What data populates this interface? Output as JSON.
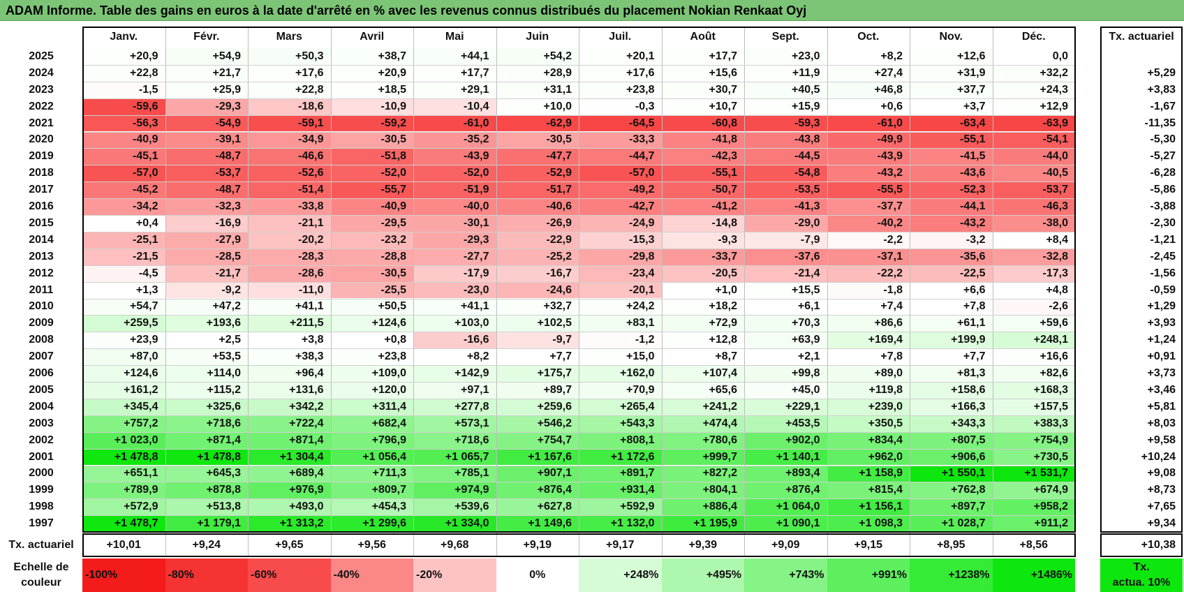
{
  "title": "ADAM Informe. Table des gains en euros à la date d'arrêté en % avec les revenus connus distribués du placement Nokian Renkaat Oyj",
  "chart_data": {
    "type": "table",
    "months": [
      "Janv.",
      "Févr.",
      "Mars",
      "Avril",
      "Mai",
      "Juin",
      "Juil.",
      "Août",
      "Sept.",
      "Oct.",
      "Nov.",
      "Déc."
    ],
    "rate_column_header": "Tx. actuariel",
    "rows": [
      {
        "year": "2025",
        "values": [
          "+20,9",
          "+54,9",
          "+50,3",
          "+38,7",
          "+44,1",
          "+54,2",
          "+20,1",
          "+17,7",
          "+23,0",
          "+8,2",
          "+12,6",
          "0,0"
        ],
        "rate": ""
      },
      {
        "year": "2024",
        "values": [
          "+22,8",
          "+21,7",
          "+17,6",
          "+20,9",
          "+17,7",
          "+28,9",
          "+17,6",
          "+15,6",
          "+11,9",
          "+27,4",
          "+31,9",
          "+32,2"
        ],
        "rate": "+5,29"
      },
      {
        "year": "2023",
        "values": [
          "-1,5",
          "+25,9",
          "+22,8",
          "+18,5",
          "+29,1",
          "+31,1",
          "+23,8",
          "+30,7",
          "+40,5",
          "+46,8",
          "+37,7",
          "+24,3"
        ],
        "rate": "+3,83"
      },
      {
        "year": "2022",
        "values": [
          "-59,6",
          "-29,3",
          "-18,6",
          "-10,9",
          "-10,4",
          "+10,0",
          "-0,3",
          "+10,7",
          "+15,9",
          "+0,6",
          "+3,7",
          "+12,9"
        ],
        "rate": "-1,67"
      },
      {
        "year": "2021",
        "values": [
          "-56,3",
          "-54,9",
          "-59,1",
          "-59,2",
          "-61,0",
          "-62,9",
          "-64,5",
          "-60,8",
          "-59,3",
          "-61,0",
          "-63,4",
          "-63,9"
        ],
        "rate": "-11,35"
      },
      {
        "year": "2020",
        "values": [
          "-40,9",
          "-39,1",
          "-34,9",
          "-30,5",
          "-35,2",
          "-30,5",
          "-33,3",
          "-41,8",
          "-43,8",
          "-49,9",
          "-55,1",
          "-54,1"
        ],
        "rate": "-5,30"
      },
      {
        "year": "2019",
        "values": [
          "-45,1",
          "-48,7",
          "-46,6",
          "-51,8",
          "-43,9",
          "-47,7",
          "-44,7",
          "-42,3",
          "-44,5",
          "-43,9",
          "-41,5",
          "-44,0"
        ],
        "rate": "-5,27"
      },
      {
        "year": "2018",
        "values": [
          "-57,0",
          "-53,7",
          "-52,6",
          "-52,0",
          "-52,0",
          "-52,9",
          "-57,0",
          "-55,1",
          "-54,8",
          "-43,2",
          "-43,6",
          "-40,5"
        ],
        "rate": "-6,28"
      },
      {
        "year": "2017",
        "values": [
          "-45,2",
          "-48,7",
          "-51,4",
          "-55,7",
          "-51,9",
          "-51,7",
          "-49,2",
          "-50,7",
          "-53,5",
          "-55,5",
          "-52,3",
          "-53,7"
        ],
        "rate": "-5,86"
      },
      {
        "year": "2016",
        "values": [
          "-34,2",
          "-32,3",
          "-33,8",
          "-40,9",
          "-40,0",
          "-40,6",
          "-42,7",
          "-41,2",
          "-41,3",
          "-37,7",
          "-44,1",
          "-46,3"
        ],
        "rate": "-3,88"
      },
      {
        "year": "2015",
        "values": [
          "+0,4",
          "-16,9",
          "-21,1",
          "-29,5",
          "-30,1",
          "-26,9",
          "-24,9",
          "-14,8",
          "-29,0",
          "-40,2",
          "-43,2",
          "-38,0"
        ],
        "rate": "-2,30"
      },
      {
        "year": "2014",
        "values": [
          "-25,1",
          "-27,9",
          "-20,2",
          "-23,2",
          "-29,3",
          "-22,9",
          "-15,3",
          "-9,3",
          "-7,9",
          "-2,2",
          "-3,2",
          "+8,4"
        ],
        "rate": "-1,21"
      },
      {
        "year": "2013",
        "values": [
          "-21,5",
          "-28,5",
          "-28,3",
          "-28,8",
          "-27,7",
          "-25,2",
          "-29,8",
          "-33,7",
          "-37,6",
          "-37,1",
          "-35,6",
          "-32,8"
        ],
        "rate": "-2,45"
      },
      {
        "year": "2012",
        "values": [
          "-4,5",
          "-21,7",
          "-28,6",
          "-30,5",
          "-17,9",
          "-16,7",
          "-23,4",
          "-20,5",
          "-21,4",
          "-22,2",
          "-22,5",
          "-17,3"
        ],
        "rate": "-1,56"
      },
      {
        "year": "2011",
        "values": [
          "+1,3",
          "-9,2",
          "-11,0",
          "-25,5",
          "-23,0",
          "-24,6",
          "-20,1",
          "+1,0",
          "+15,5",
          "-1,8",
          "+6,6",
          "+4,8"
        ],
        "rate": "-0,59"
      },
      {
        "year": "2010",
        "values": [
          "+54,7",
          "+47,2",
          "+41,1",
          "+50,5",
          "+41,1",
          "+32,7",
          "+24,2",
          "+18,2",
          "+6,1",
          "+7,4",
          "+7,8",
          "-2,6"
        ],
        "rate": "+1,29"
      },
      {
        "year": "2009",
        "values": [
          "+259,5",
          "+193,6",
          "+211,5",
          "+124,6",
          "+103,0",
          "+102,5",
          "+83,1",
          "+72,9",
          "+70,3",
          "+86,6",
          "+61,1",
          "+59,6"
        ],
        "rate": "+3,93"
      },
      {
        "year": "2008",
        "values": [
          "+23,9",
          "+2,5",
          "+3,8",
          "+0,8",
          "-16,6",
          "-9,7",
          "-1,2",
          "+12,8",
          "+63,9",
          "+169,4",
          "+199,9",
          "+248,1"
        ],
        "rate": "+1,24"
      },
      {
        "year": "2007",
        "values": [
          "+87,0",
          "+53,5",
          "+38,3",
          "+23,8",
          "+8,2",
          "+7,7",
          "+15,0",
          "+8,7",
          "+2,1",
          "+7,8",
          "+7,7",
          "+16,6"
        ],
        "rate": "+0,91"
      },
      {
        "year": "2006",
        "values": [
          "+124,6",
          "+114,0",
          "+96,4",
          "+109,0",
          "+142,9",
          "+175,7",
          "+162,0",
          "+107,4",
          "+99,8",
          "+89,0",
          "+81,3",
          "+82,6"
        ],
        "rate": "+3,73"
      },
      {
        "year": "2005",
        "values": [
          "+161,2",
          "+115,2",
          "+131,6",
          "+120,0",
          "+97,1",
          "+89,7",
          "+70,9",
          "+65,6",
          "+45,0",
          "+119,8",
          "+158,6",
          "+168,3"
        ],
        "rate": "+3,46"
      },
      {
        "year": "2004",
        "values": [
          "+345,4",
          "+325,6",
          "+342,2",
          "+311,4",
          "+277,8",
          "+259,6",
          "+265,4",
          "+241,2",
          "+229,1",
          "+239,0",
          "+166,3",
          "+157,5"
        ],
        "rate": "+5,81"
      },
      {
        "year": "2003",
        "values": [
          "+757,2",
          "+718,6",
          "+722,4",
          "+682,4",
          "+573,1",
          "+546,2",
          "+543,3",
          "+474,4",
          "+453,5",
          "+350,5",
          "+343,3",
          "+383,3"
        ],
        "rate": "+8,03"
      },
      {
        "year": "2002",
        "values": [
          "+1 023,0",
          "+871,4",
          "+871,4",
          "+796,9",
          "+718,6",
          "+754,7",
          "+808,1",
          "+780,6",
          "+902,0",
          "+834,4",
          "+807,5",
          "+754,9"
        ],
        "rate": "+9,58"
      },
      {
        "year": "2001",
        "values": [
          "+1 478,8",
          "+1 478,8",
          "+1 304,4",
          "+1 056,4",
          "+1 065,7",
          "+1 167,6",
          "+1 172,6",
          "+999,7",
          "+1 140,1",
          "+962,0",
          "+906,6",
          "+730,5"
        ],
        "rate": "+10,24"
      },
      {
        "year": "2000",
        "values": [
          "+651,1",
          "+645,3",
          "+689,4",
          "+711,3",
          "+785,1",
          "+907,1",
          "+891,7",
          "+827,2",
          "+893,4",
          "+1 158,9",
          "+1 550,1",
          "+1 531,7"
        ],
        "rate": "+9,08"
      },
      {
        "year": "1999",
        "values": [
          "+789,9",
          "+878,8",
          "+976,9",
          "+809,7",
          "+974,9",
          "+876,4",
          "+931,4",
          "+804,1",
          "+876,4",
          "+815,4",
          "+762,8",
          "+674,9"
        ],
        "rate": "+8,73"
      },
      {
        "year": "1998",
        "values": [
          "+572,9",
          "+513,8",
          "+493,0",
          "+454,3",
          "+539,6",
          "+627,8",
          "+592,9",
          "+886,4",
          "+1 064,0",
          "+1 156,1",
          "+897,7",
          "+958,2"
        ],
        "rate": "+7,65"
      },
      {
        "year": "1997",
        "values": [
          "+1 478,7",
          "+1 179,1",
          "+1 313,2",
          "+1 299,6",
          "+1 334,0",
          "+1 149,6",
          "+1 132,0",
          "+1 195,9",
          "+1 090,1",
          "+1 098,3",
          "+1 028,7",
          "+911,2"
        ],
        "rate": "+9,34"
      }
    ],
    "footer": {
      "label": "Tx. actuariel",
      "values": [
        "+10,01",
        "+9,24",
        "+9,65",
        "+9,56",
        "+9,68",
        "+9,19",
        "+9,17",
        "+9,39",
        "+9,09",
        "+9,15",
        "+8,95",
        "+8,56"
      ],
      "rate": "+10,38"
    },
    "color_scale": {
      "label_line1": "Echelle de",
      "label_line2": "couleur",
      "stops": [
        {
          "label": "-100%",
          "value": -100,
          "color": "#f41b1b"
        },
        {
          "label": "-80%",
          "value": -80,
          "color": "#f63333"
        },
        {
          "label": "-60%",
          "value": -60,
          "color": "#f84b4b"
        },
        {
          "label": "-40%",
          "value": -40,
          "color": "#fb8787"
        },
        {
          "label": "-20%",
          "value": -20,
          "color": "#fdc3c3"
        },
        {
          "label": "0%",
          "value": 0,
          "color": "#ffffff"
        },
        {
          "label": "+248%",
          "value": 248,
          "color": "#d6fcd6"
        },
        {
          "label": "+495%",
          "value": 495,
          "color": "#aef7ae"
        },
        {
          "label": "+743%",
          "value": 743,
          "color": "#86f386"
        },
        {
          "label": "+991%",
          "value": 991,
          "color": "#5eef5e"
        },
        {
          "label": "+1238%",
          "value": 1238,
          "color": "#36eb36"
        },
        {
          "label": "+1486%",
          "value": 1486,
          "color": "#0ee70e"
        }
      ],
      "rate_legend_line1": "Tx.",
      "rate_legend_line2": "actua. 10%",
      "rate_legend_color": "#0ee70e"
    }
  }
}
